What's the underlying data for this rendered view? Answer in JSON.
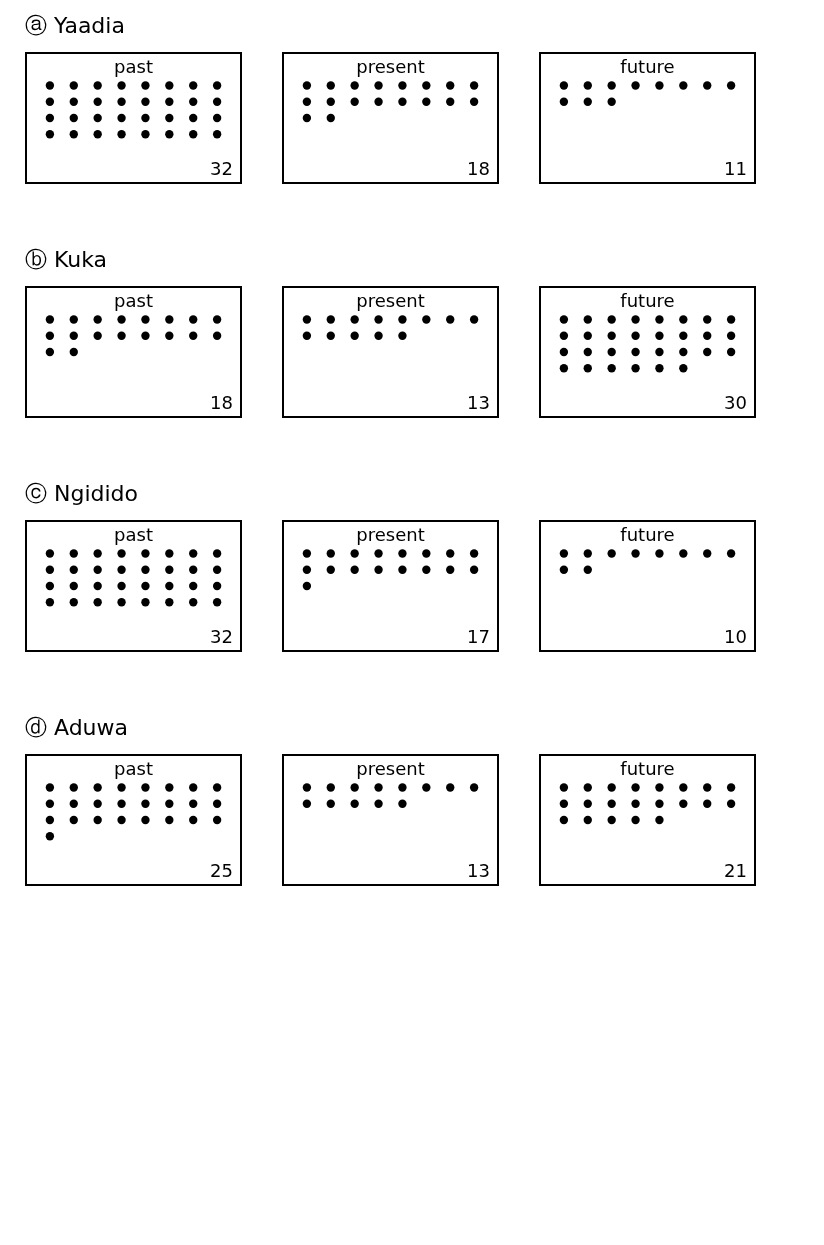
{
  "chart_data": [
    {
      "type": "other",
      "title": "ⓐ Yaadia",
      "categories": [
        "past",
        "present",
        "future"
      ],
      "values": [
        32,
        18,
        11
      ],
      "data_labels": true
    },
    {
      "type": "other",
      "title": "ⓑ Kuka",
      "categories": [
        "past",
        "present",
        "future"
      ],
      "values": [
        18,
        13,
        30
      ],
      "data_labels": true
    },
    {
      "type": "other",
      "title": "ⓒ Ngidido",
      "categories": [
        "past",
        "present",
        "future"
      ],
      "values": [
        32,
        17,
        10
      ],
      "data_labels": true
    },
    {
      "type": "other",
      "title": "ⓓ Aduwa",
      "categories": [
        "past",
        "present",
        "future"
      ],
      "values": [
        25,
        13,
        21
      ],
      "data_labels": true
    }
  ]
}
